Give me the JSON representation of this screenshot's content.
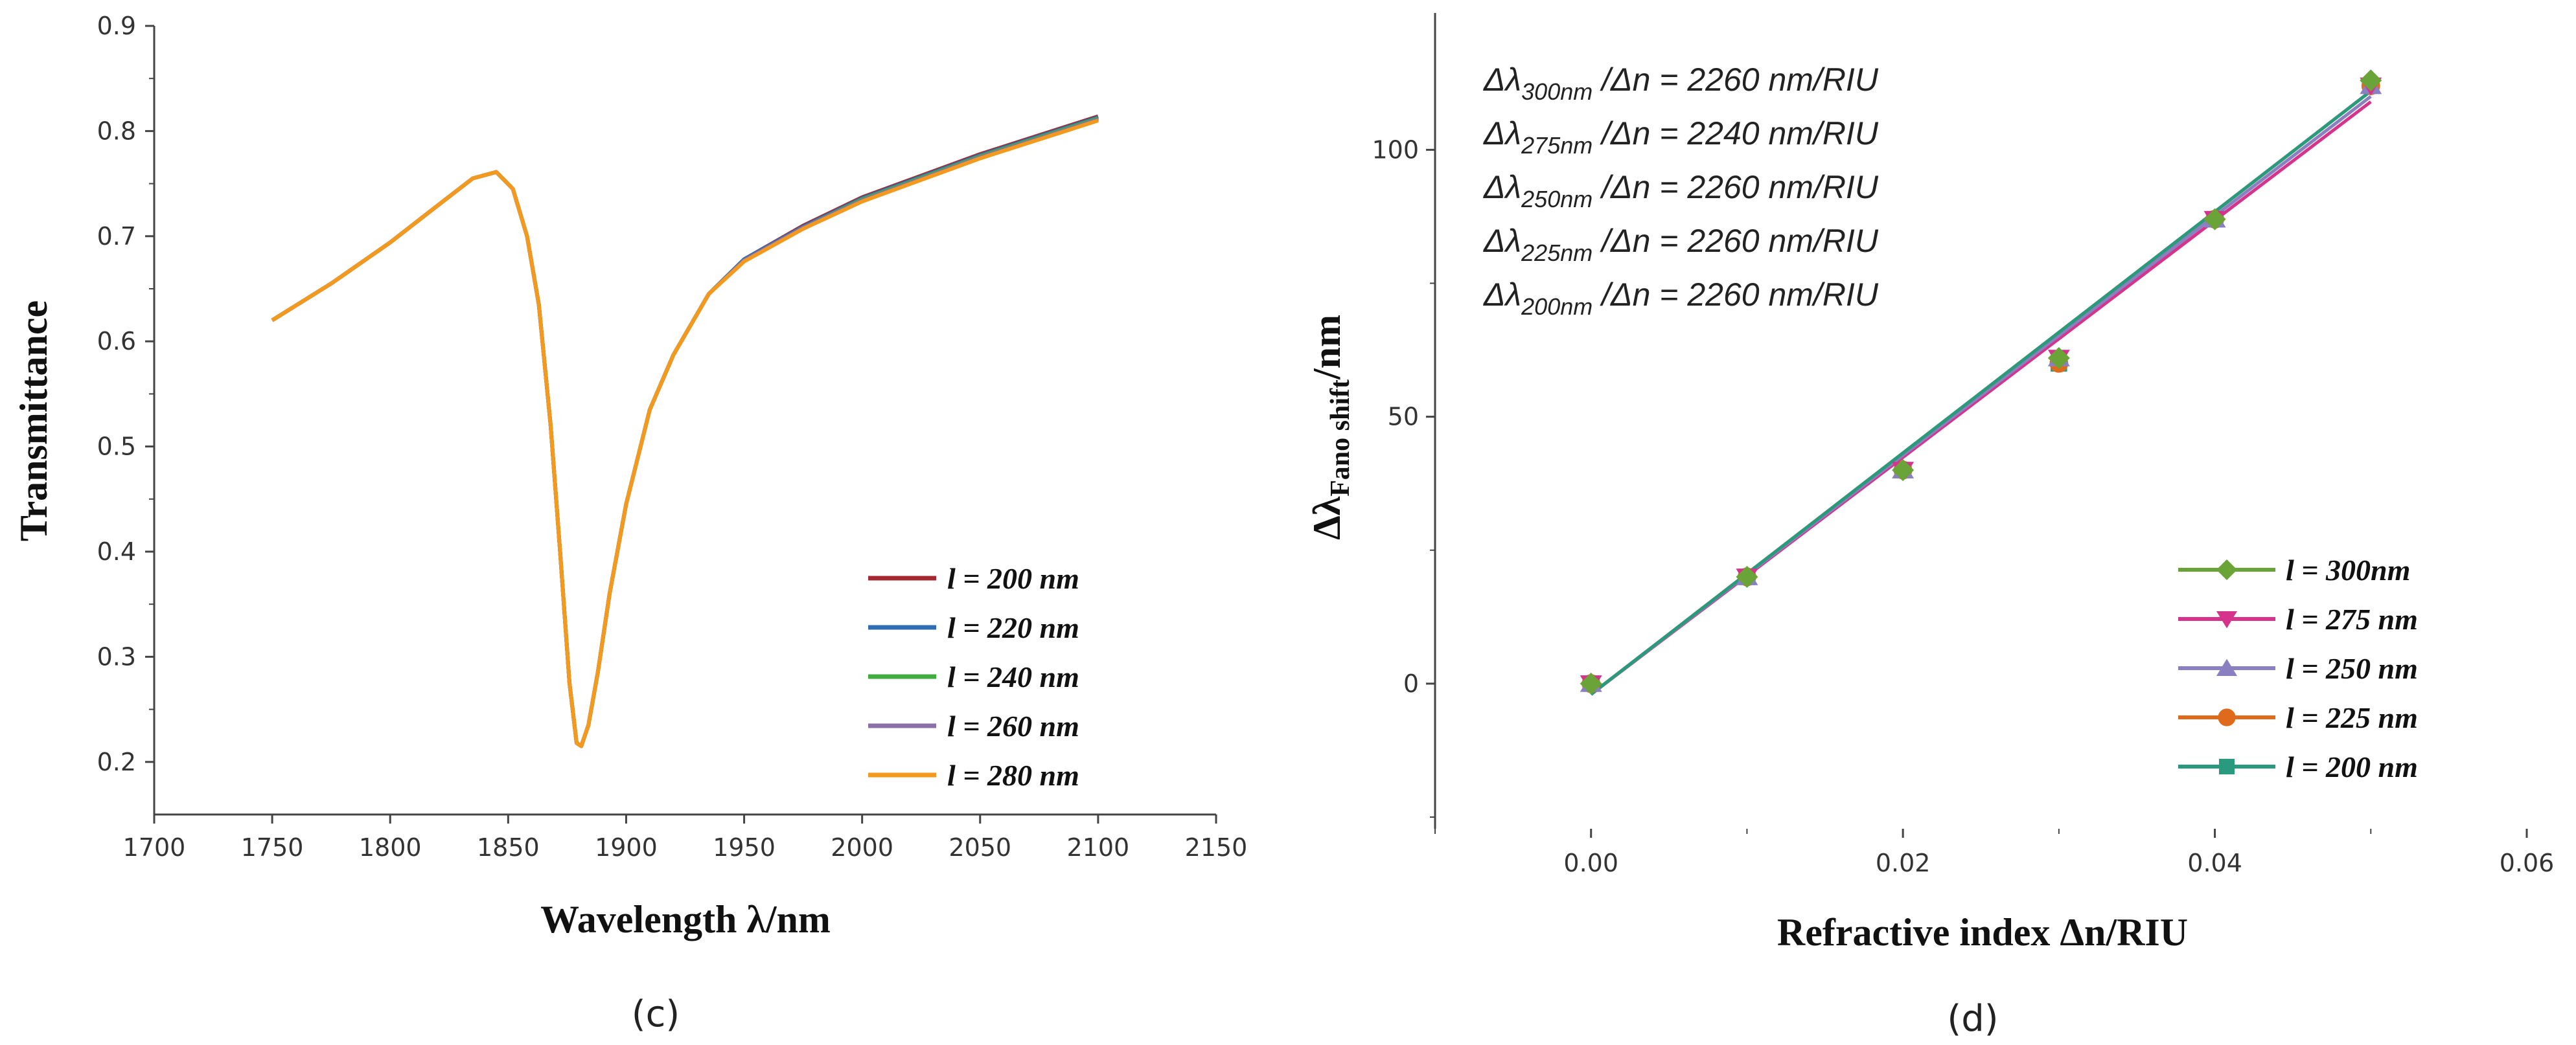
{
  "chart_data": [
    {
      "id": "c",
      "type": "line",
      "caption": "(c)",
      "xlabel": "Wavelength λ/nm",
      "ylabel": "Transmittance",
      "xlim": [
        1700,
        2150
      ],
      "ylim": [
        0.15,
        0.9
      ],
      "xticks": [
        "1700",
        "1750",
        "1800",
        "1850",
        "1900",
        "1950",
        "2000",
        "2050",
        "2100",
        "2150"
      ],
      "yticks": [
        "0.2",
        "0.3",
        "0.4",
        "0.5",
        "0.6",
        "0.7",
        "0.8",
        "0.9"
      ],
      "x": [
        1750,
        1775,
        1800,
        1820,
        1835,
        1845,
        1852,
        1858,
        1863,
        1868,
        1872,
        1876,
        1879,
        1881,
        1884,
        1888,
        1893,
        1900,
        1910,
        1920,
        1935,
        1950,
        1975,
        2000,
        2050,
        2100
      ],
      "series": [
        {
          "name": "l = 200 nm",
          "color": "#a3282f",
          "y": [
            0.62,
            0.655,
            0.694,
            0.729,
            0.755,
            0.761,
            0.745,
            0.7,
            0.635,
            0.52,
            0.4,
            0.275,
            0.218,
            0.215,
            0.235,
            0.285,
            0.36,
            0.445,
            0.535,
            0.587,
            0.645,
            0.678,
            0.71,
            0.737,
            0.778,
            0.814
          ]
        },
        {
          "name": "l = 220 nm",
          "color": "#2f6eb5",
          "y": [
            0.62,
            0.655,
            0.694,
            0.729,
            0.755,
            0.761,
            0.745,
            0.7,
            0.635,
            0.52,
            0.4,
            0.275,
            0.218,
            0.215,
            0.235,
            0.285,
            0.36,
            0.445,
            0.535,
            0.587,
            0.645,
            0.678,
            0.709,
            0.736,
            0.777,
            0.813
          ]
        },
        {
          "name": "l = 240 nm",
          "color": "#3fae3f",
          "y": [
            0.62,
            0.655,
            0.694,
            0.729,
            0.755,
            0.761,
            0.745,
            0.7,
            0.635,
            0.52,
            0.4,
            0.275,
            0.218,
            0.215,
            0.235,
            0.285,
            0.36,
            0.445,
            0.535,
            0.587,
            0.645,
            0.677,
            0.708,
            0.735,
            0.776,
            0.812
          ]
        },
        {
          "name": "l = 260 nm",
          "color": "#8a6fa8",
          "y": [
            0.62,
            0.655,
            0.694,
            0.729,
            0.755,
            0.761,
            0.745,
            0.7,
            0.635,
            0.52,
            0.4,
            0.275,
            0.218,
            0.215,
            0.235,
            0.285,
            0.36,
            0.445,
            0.535,
            0.587,
            0.645,
            0.677,
            0.708,
            0.734,
            0.775,
            0.811
          ]
        },
        {
          "name": "l = 280 nm",
          "color": "#f39a1e",
          "y": [
            0.62,
            0.655,
            0.694,
            0.729,
            0.755,
            0.761,
            0.745,
            0.7,
            0.635,
            0.52,
            0.4,
            0.275,
            0.218,
            0.215,
            0.235,
            0.285,
            0.36,
            0.445,
            0.535,
            0.587,
            0.645,
            0.676,
            0.707,
            0.733,
            0.774,
            0.81
          ]
        }
      ]
    },
    {
      "id": "d",
      "type": "scatter",
      "caption": "(d)",
      "xlabel": "Refractive index Δn/RIU",
      "ylabel_main": "Δλ",
      "ylabel_sub": "Fano shift",
      "ylabel_tail": "/nm",
      "xlim": [
        -0.01,
        0.06
      ],
      "ylim": [
        -25,
        122
      ],
      "xticks": [
        {
          "v": 0.0,
          "label": "0.00"
        },
        {
          "v": 0.02,
          "label": "0.02"
        },
        {
          "v": 0.04,
          "label": "0.04"
        },
        {
          "v": 0.06,
          "label": "0.06"
        }
      ],
      "yticks": [
        {
          "v": 0,
          "label": "0"
        },
        {
          "v": 50,
          "label": "50"
        },
        {
          "v": 100,
          "label": "100"
        }
      ],
      "x": [
        0.0,
        0.01,
        0.02,
        0.03,
        0.04,
        0.05
      ],
      "series": [
        {
          "name": "l = 300nm",
          "color": "#6aa337",
          "marker": "diamond",
          "y": [
            0,
            20,
            40,
            61,
            87,
            113
          ],
          "fit": [
            -2,
            111
          ]
        },
        {
          "name": "l = 275 nm",
          "color": "#d6338c",
          "marker": "triangle-down",
          "y": [
            0,
            20,
            40,
            61,
            87,
            112
          ],
          "fit": [
            -2,
            109
          ]
        },
        {
          "name": "l = 250 nm",
          "color": "#8a7fc0",
          "marker": "triangle-up",
          "y": [
            0,
            20,
            40,
            61,
            87,
            112
          ],
          "fit": [
            -2,
            110
          ]
        },
        {
          "name": "l = 225 nm",
          "color": "#e06a1c",
          "marker": "circle",
          "y": [
            0,
            20,
            40,
            60,
            87,
            112
          ],
          "fit": [
            -2,
            111
          ]
        },
        {
          "name": "l = 200 nm",
          "color": "#2a9a7f",
          "marker": "square",
          "y": [
            0,
            20,
            40,
            60,
            87,
            112
          ],
          "fit": [
            -2,
            111
          ]
        }
      ],
      "annotations": [
        {
          "pre": "Δλ",
          "sub": "300nm",
          "post": " /Δn = 2260 nm/RIU"
        },
        {
          "pre": "Δλ",
          "sub": "275nm",
          "post": " /Δn = 2240 nm/RIU"
        },
        {
          "pre": "Δλ",
          "sub": "250nm",
          "post": " /Δn = 2260 nm/RIU"
        },
        {
          "pre": "Δλ",
          "sub": "225nm",
          "post": " /Δn = 2260 nm/RIU"
        },
        {
          "pre": "Δλ",
          "sub": "200nm",
          "post": " /Δn = 2260 nm/RIU"
        }
      ]
    }
  ]
}
